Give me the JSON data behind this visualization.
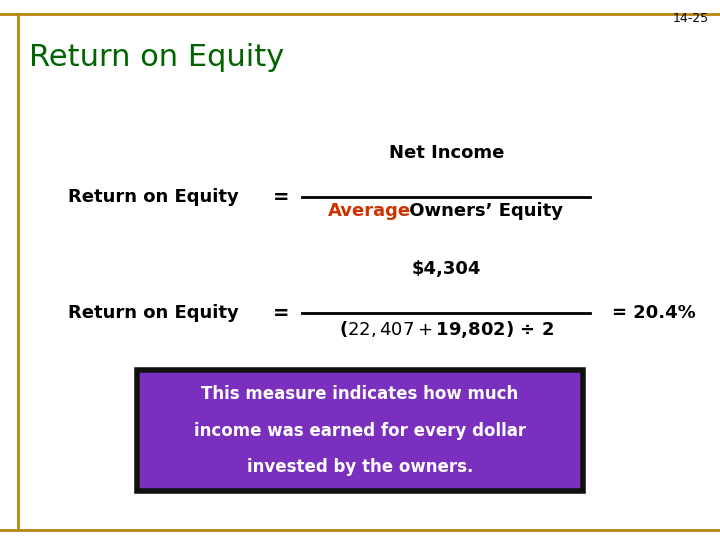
{
  "slide_number": "14-25",
  "title": "Return on Equity",
  "title_color": "#006400",
  "background_color": "#FFFFFF",
  "border_color": "#B8860B",
  "slide_number_color": "#000000",
  "formula_label": "Return on Equity",
  "formula_label_color": "#000000",
  "equals_sign": "=",
  "numerator_text": "Net Income",
  "numerator_color": "#000000",
  "denominator_word1": "Average",
  "denominator_word1_color": "#CC3300",
  "denominator_word2": " Owners’ Equity",
  "denominator_word2_color": "#000000",
  "example_numerator": "$4,304",
  "example_denominator": "($22,407 + $19,802) ÷ 2",
  "example_result": "= 20.4%",
  "example_color": "#000000",
  "box_text_line1": "This measure indicates how much",
  "box_text_line2": "income was earned for every dollar",
  "box_text_line3": "invested by the owners.",
  "box_bg_color": "#7B2FBE",
  "box_border_color": "#111111",
  "box_text_color": "#FFFFFF"
}
